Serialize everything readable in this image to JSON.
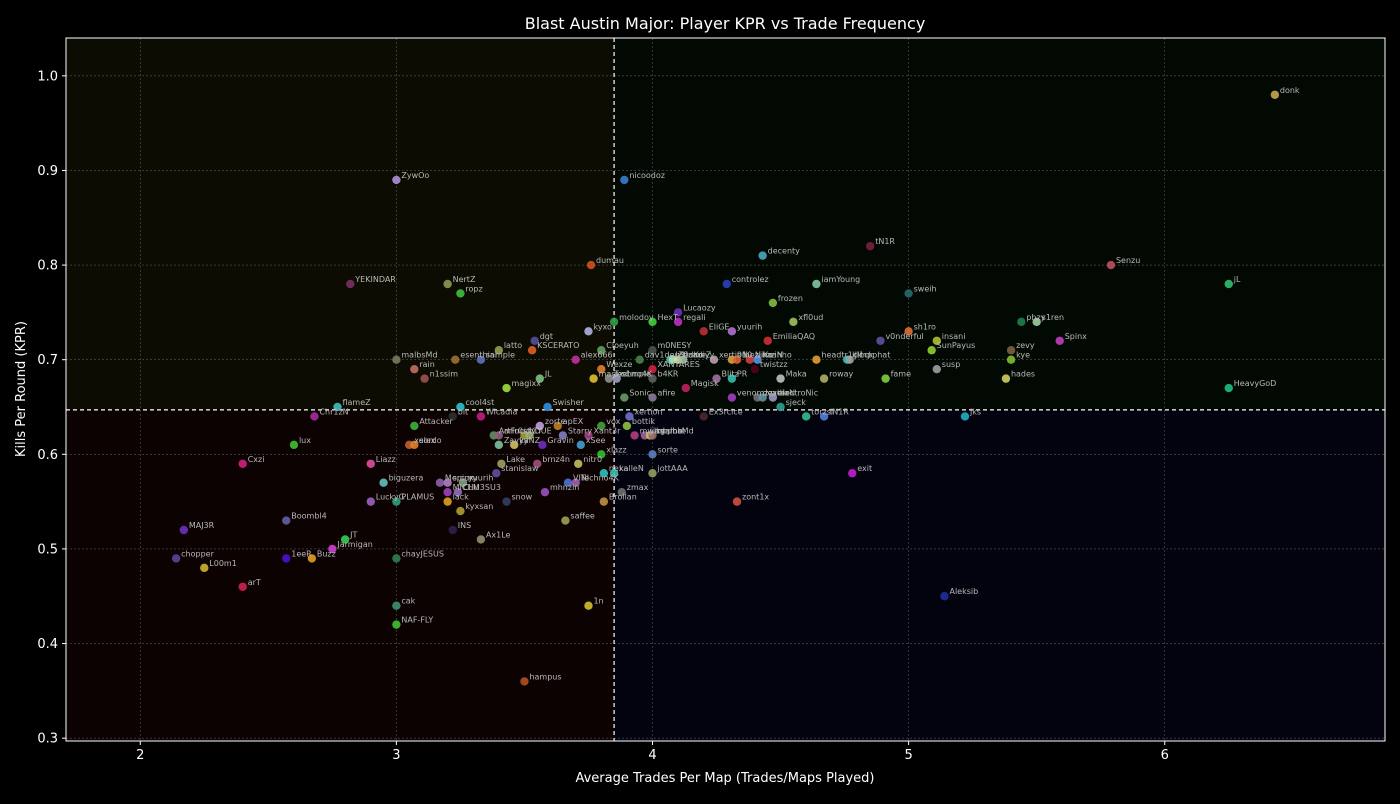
{
  "chart_data": {
    "type": "scatter",
    "title": "Blast Austin Major: Player KPR vs Trade Frequency",
    "xlabel": "Average Trades Per Map (Trades/Maps Played)",
    "ylabel": "Kills Per Round (KPR)",
    "xlim": [
      1.71,
      6.86
    ],
    "ylim": [
      0.297,
      1.04
    ],
    "x_ticks": [
      2,
      3,
      4,
      5,
      6
    ],
    "y_ticks": [
      0.3,
      0.4,
      0.5,
      0.6,
      0.7,
      0.8,
      0.9,
      1.0
    ],
    "x_tick_labels": [
      "2",
      "3",
      "4",
      "5",
      "6"
    ],
    "y_tick_labels": [
      "0.3",
      "0.4",
      "0.5",
      "0.6",
      "0.7",
      "0.8",
      "0.9",
      "1.0"
    ],
    "grid": true,
    "reference_lines": {
      "x": 3.85,
      "y": 0.647
    },
    "quadrant_colors": {
      "top_left": "#0c0c03",
      "top_right": "#020902",
      "bottom_left": "#0c0202",
      "bottom_right": "#03030f"
    },
    "points": [
      {
        "label": "donk",
        "x": 6.43,
        "y": 0.98,
        "color": "#c8a850"
      },
      {
        "label": "ZywOo",
        "x": 3.0,
        "y": 0.89,
        "color": "#b08ed8"
      },
      {
        "label": "nicoodoz",
        "x": 3.89,
        "y": 0.89,
        "color": "#3a7fd0"
      },
      {
        "label": "tN1R",
        "x": 4.85,
        "y": 0.82,
        "color": "#7a2040"
      },
      {
        "label": "decenty",
        "x": 4.43,
        "y": 0.81,
        "color": "#4aa8c0"
      },
      {
        "label": "Senzu",
        "x": 5.79,
        "y": 0.8,
        "color": "#c05060"
      },
      {
        "label": "dumau",
        "x": 3.76,
        "y": 0.8,
        "color": "#d05020"
      },
      {
        "label": "YEKINDAR",
        "x": 2.82,
        "y": 0.78,
        "color": "#7a3060"
      },
      {
        "label": "NertZ",
        "x": 3.2,
        "y": 0.78,
        "color": "#8a9a50"
      },
      {
        "label": "controlez",
        "x": 4.29,
        "y": 0.78,
        "color": "#2a40c0"
      },
      {
        "label": "iamYoung",
        "x": 4.64,
        "y": 0.78,
        "color": "#80c8a0"
      },
      {
        "label": "jL",
        "x": 6.25,
        "y": 0.78,
        "color": "#30c070"
      },
      {
        "label": "ropz",
        "x": 3.25,
        "y": 0.77,
        "color": "#40c040"
      },
      {
        "label": "sweih",
        "x": 5.0,
        "y": 0.77,
        "color": "#2a6a70"
      },
      {
        "label": "frozen",
        "x": 4.47,
        "y": 0.76,
        "color": "#80c040"
      },
      {
        "label": "Lucaozy",
        "x": 4.1,
        "y": 0.75,
        "color": "#7030c0"
      },
      {
        "label": "molodoy",
        "x": 3.85,
        "y": 0.74,
        "color": "#30a040"
      },
      {
        "label": "HexT",
        "x": 4.0,
        "y": 0.74,
        "color": "#40d040"
      },
      {
        "label": "regali",
        "x": 4.1,
        "y": 0.74,
        "color": "#c030c0"
      },
      {
        "label": "xfl0ud",
        "x": 4.55,
        "y": 0.74,
        "color": "#a0c060"
      },
      {
        "label": "phzy",
        "x": 5.44,
        "y": 0.74,
        "color": "#208050"
      },
      {
        "label": "s1ren",
        "x": 5.5,
        "y": 0.74,
        "color": "#a0d0a0"
      },
      {
        "label": "kyxo",
        "x": 3.75,
        "y": 0.73,
        "color": "#b0b0e0"
      },
      {
        "label": "EliGE",
        "x": 4.2,
        "y": 0.73,
        "color": "#c03030"
      },
      {
        "label": "yuurih",
        "x": 4.31,
        "y": 0.73,
        "color": "#b070d0"
      },
      {
        "label": "sh1ro",
        "x": 5.0,
        "y": 0.73,
        "color": "#e07030"
      },
      {
        "label": "dgt",
        "x": 3.54,
        "y": 0.72,
        "color": "#5050a0"
      },
      {
        "label": "EmiliaQAQ",
        "x": 4.45,
        "y": 0.72,
        "color": "#d03030"
      },
      {
        "label": "v0nderful",
        "x": 4.89,
        "y": 0.72,
        "color": "#6050a0"
      },
      {
        "label": "insani",
        "x": 5.11,
        "y": 0.72,
        "color": "#b0c030"
      },
      {
        "label": "Spinx",
        "x": 5.59,
        "y": 0.72,
        "color": "#c040c0"
      },
      {
        "label": "latto",
        "x": 3.4,
        "y": 0.71,
        "color": "#90a050"
      },
      {
        "label": "KSCERATO",
        "x": 3.53,
        "y": 0.71,
        "color": "#e06020"
      },
      {
        "label": "Cloeyuh",
        "x": 3.8,
        "y": 0.71,
        "color": "#60a060"
      },
      {
        "label": "m0NESY",
        "x": 4.0,
        "y": 0.71,
        "color": "#505050"
      },
      {
        "label": "SunPayus",
        "x": 5.09,
        "y": 0.71,
        "color": "#90d030"
      },
      {
        "label": "zevy",
        "x": 5.4,
        "y": 0.71,
        "color": "#806040"
      },
      {
        "label": "malbsMd",
        "x": 3.0,
        "y": 0.7,
        "color": "#7a7a60"
      },
      {
        "label": "esenthial",
        "x": 3.23,
        "y": 0.7,
        "color": "#a07030"
      },
      {
        "label": "sample",
        "x": 3.33,
        "y": 0.7,
        "color": "#6070c0"
      },
      {
        "label": "alex666",
        "x": 3.7,
        "y": 0.7,
        "color": "#c030a0"
      },
      {
        "label": "dav1deuS",
        "x": 3.95,
        "y": 0.7,
        "color": "#508050"
      },
      {
        "label": "b1t",
        "x": 4.07,
        "y": 0.7,
        "color": "#40c0b0"
      },
      {
        "label": "ZedKo",
        "x": 4.08,
        "y": 0.7,
        "color": "#b0e0b0"
      },
      {
        "label": "flameZ",
        "x": 4.1,
        "y": 0.7,
        "color": "#d0e0a0"
      },
      {
        "label": "cadiyy",
        "x": 4.12,
        "y": 0.7,
        "color": "#a0c0a0"
      },
      {
        "label": "xertioN",
        "x": 4.24,
        "y": 0.7,
        "color": "#c0a0b0"
      },
      {
        "label": "910",
        "x": 4.31,
        "y": 0.7,
        "color": "#e0a040"
      },
      {
        "label": "mezii",
        "x": 4.33,
        "y": 0.7,
        "color": "#e06030"
      },
      {
        "label": "NiKo",
        "x": 4.38,
        "y": 0.7,
        "color": "#d04040"
      },
      {
        "label": "mzinho",
        "x": 4.41,
        "y": 0.7,
        "color": "#a05050"
      },
      {
        "label": "kaaN",
        "x": 4.41,
        "y": 0.7,
        "color": "#4090e0"
      },
      {
        "label": "headtr1ck",
        "x": 4.64,
        "y": 0.7,
        "color": "#e0a030"
      },
      {
        "label": "kl1ck",
        "x": 4.76,
        "y": 0.7,
        "color": "#30c0c0"
      },
      {
        "label": "Jimpphat",
        "x": 4.77,
        "y": 0.7,
        "color": "#a0a0a0"
      },
      {
        "label": "kye",
        "x": 5.4,
        "y": 0.7,
        "color": "#80c030"
      },
      {
        "label": "rain",
        "x": 3.07,
        "y": 0.69,
        "color": "#c07060"
      },
      {
        "label": "Wexze",
        "x": 3.8,
        "y": 0.69,
        "color": "#e08030"
      },
      {
        "label": "XANTARES",
        "x": 4.0,
        "y": 0.69,
        "color": "#d02040"
      },
      {
        "label": "twistzz",
        "x": 4.4,
        "y": 0.69,
        "color": "#500020"
      },
      {
        "label": "susp",
        "x": 5.11,
        "y": 0.69,
        "color": "#a0a0a0"
      },
      {
        "label": "n1ssim",
        "x": 3.11,
        "y": 0.68,
        "color": "#a05050"
      },
      {
        "label": "JL",
        "x": 3.56,
        "y": 0.68,
        "color": "#80c080"
      },
      {
        "label": "magixx",
        "x": 3.77,
        "y": 0.68,
        "color": "#e0c030"
      },
      {
        "label": "Techno4K",
        "x": 3.83,
        "y": 0.68,
        "color": "#909090"
      },
      {
        "label": "s1mple",
        "x": 3.86,
        "y": 0.68,
        "color": "#a0a0c0"
      },
      {
        "label": "b4KR",
        "x": 4.0,
        "y": 0.68,
        "color": "#606060"
      },
      {
        "label": "Blitz",
        "x": 4.25,
        "y": 0.68,
        "color": "#a070a0"
      },
      {
        "label": "PR",
        "x": 4.31,
        "y": 0.68,
        "color": "#30c0b0"
      },
      {
        "label": "Maka",
        "x": 4.5,
        "y": 0.68,
        "color": "#c0c0c0"
      },
      {
        "label": "roway",
        "x": 4.67,
        "y": 0.68,
        "color": "#b0b060"
      },
      {
        "label": "fame",
        "x": 4.91,
        "y": 0.68,
        "color": "#80d040"
      },
      {
        "label": "hades",
        "x": 5.38,
        "y": 0.68,
        "color": "#d0d060"
      },
      {
        "label": "magixx",
        "x": 3.43,
        "y": 0.67,
        "color": "#a0e040"
      },
      {
        "label": "Magisk",
        "x": 4.13,
        "y": 0.67,
        "color": "#c02060"
      },
      {
        "label": "HeavyGoD",
        "x": 6.25,
        "y": 0.67,
        "color": "#20c080"
      },
      {
        "label": "Sonic",
        "x": 3.89,
        "y": 0.66,
        "color": "#6a9a6a"
      },
      {
        "label": "afire",
        "x": 4.0,
        "y": 0.66,
        "color": "#8a7a9a"
      },
      {
        "label": "venomzz",
        "x": 4.31,
        "y": 0.66,
        "color": "#a040c0"
      },
      {
        "label": "dexter",
        "x": 4.41,
        "y": 0.66,
        "color": "#707070"
      },
      {
        "label": "cadiaN",
        "x": 4.43,
        "y": 0.66,
        "color": "#6090a0"
      },
      {
        "label": "electroNic",
        "x": 4.47,
        "y": 0.66,
        "color": "#9a9ac0"
      },
      {
        "label": "flameZ",
        "x": 2.77,
        "y": 0.65,
        "color": "#40c0c0"
      },
      {
        "label": "cool4st",
        "x": 3.25,
        "y": 0.65,
        "color": "#30c0d0"
      },
      {
        "label": "Swisher",
        "x": 3.59,
        "y": 0.65,
        "color": "#3090e0"
      },
      {
        "label": "sjeck",
        "x": 4.5,
        "y": 0.65,
        "color": "#30a090"
      },
      {
        "label": "Chr1zN",
        "x": 2.68,
        "y": 0.64,
        "color": "#a030a0"
      },
      {
        "label": "bit",
        "x": 3.22,
        "y": 0.64,
        "color": "#303030"
      },
      {
        "label": "Wicadia",
        "x": 3.33,
        "y": 0.64,
        "color": "#c02080"
      },
      {
        "label": "Ex3rcice",
        "x": 4.2,
        "y": 0.64,
        "color": "#4a2a2a"
      },
      {
        "label": "torzsi",
        "x": 4.6,
        "y": 0.64,
        "color": "#30c090"
      },
      {
        "label": "tN1R",
        "x": 4.67,
        "y": 0.64,
        "color": "#5080e0"
      },
      {
        "label": "jks",
        "x": 5.22,
        "y": 0.64,
        "color": "#20b0c0"
      },
      {
        "label": "xertion",
        "x": 3.91,
        "y": 0.64,
        "color": "#7070d0"
      },
      {
        "label": "Attacker",
        "x": 3.07,
        "y": 0.63,
        "color": "#40b040"
      },
      {
        "label": "zorte",
        "x": 3.56,
        "y": 0.63,
        "color": "#c0a0e0"
      },
      {
        "label": "apEX",
        "x": 3.63,
        "y": 0.63,
        "color": "#c08020"
      },
      {
        "label": "vox",
        "x": 3.8,
        "y": 0.63,
        "color": "#40a040"
      },
      {
        "label": "bottik",
        "x": 3.9,
        "y": 0.63,
        "color": "#90c040"
      },
      {
        "label": "ArtFr0st",
        "x": 3.38,
        "y": 0.62,
        "color": "#609060"
      },
      {
        "label": "arlucidy",
        "x": 3.4,
        "y": 0.62,
        "color": "#906080"
      },
      {
        "label": "ICY",
        "x": 3.5,
        "y": 0.62,
        "color": "#a0a040"
      },
      {
        "label": "DUE",
        "x": 3.52,
        "y": 0.62,
        "color": "#a0b070"
      },
      {
        "label": "Starry",
        "x": 3.65,
        "y": 0.62,
        "color": "#8080c0"
      },
      {
        "label": "Xant3r",
        "x": 3.75,
        "y": 0.62,
        "color": "#a04080"
      },
      {
        "label": "mwlky",
        "x": 3.93,
        "y": 0.62,
        "color": "#b04080"
      },
      {
        "label": "jimpphat",
        "x": 3.97,
        "y": 0.62,
        "color": "#a060a0"
      },
      {
        "label": "adamb",
        "x": 3.99,
        "y": 0.62,
        "color": "#c0c060"
      },
      {
        "label": "malbsMd",
        "x": 4.0,
        "y": 0.62,
        "color": "#9a6a6a"
      },
      {
        "label": "xelex",
        "x": 3.05,
        "y": 0.61,
        "color": "#c06030"
      },
      {
        "label": "sordo",
        "x": 3.07,
        "y": 0.61,
        "color": "#e08030"
      },
      {
        "label": "lux",
        "x": 2.6,
        "y": 0.61,
        "color": "#40c030"
      },
      {
        "label": "Zayyy",
        "x": 3.4,
        "y": 0.61,
        "color": "#80c0a0"
      },
      {
        "label": "kaNZ",
        "x": 3.46,
        "y": 0.61,
        "color": "#d0c060"
      },
      {
        "label": "Gravin",
        "x": 3.57,
        "y": 0.61,
        "color": "#7030c0"
      },
      {
        "label": "xSee",
        "x": 3.72,
        "y": 0.61,
        "color": "#40a0d0"
      },
      {
        "label": "xlazz",
        "x": 3.8,
        "y": 0.6,
        "color": "#30c030"
      },
      {
        "label": "sorte",
        "x": 4.0,
        "y": 0.6,
        "color": "#6080c0"
      },
      {
        "label": "Cxzi",
        "x": 2.4,
        "y": 0.59,
        "color": "#d02080"
      },
      {
        "label": "Liazz",
        "x": 2.9,
        "y": 0.59,
        "color": "#e050a0"
      },
      {
        "label": "Lake",
        "x": 3.41,
        "y": 0.59,
        "color": "#a0a060"
      },
      {
        "label": "brnz4n",
        "x": 3.55,
        "y": 0.59,
        "color": "#a05080"
      },
      {
        "label": "nitr0",
        "x": 3.71,
        "y": 0.59,
        "color": "#c0c060"
      },
      {
        "label": "stanislaw",
        "x": 3.39,
        "y": 0.58,
        "color": "#6050a0"
      },
      {
        "label": "nexa",
        "x": 3.81,
        "y": 0.58,
        "color": "#30c0c0"
      },
      {
        "label": "kalleN",
        "x": 3.85,
        "y": 0.58,
        "color": "#30c0b0"
      },
      {
        "label": "jottAAA",
        "x": 4.0,
        "y": 0.58,
        "color": "#90a060"
      },
      {
        "label": "exit",
        "x": 4.78,
        "y": 0.58,
        "color": "#c020d0"
      },
      {
        "label": "biguzera",
        "x": 2.95,
        "y": 0.57,
        "color": "#60c0c0"
      },
      {
        "label": "Mercury",
        "x": 3.17,
        "y": 0.57,
        "color": "#9060b0"
      },
      {
        "label": "spinx",
        "x": 3.2,
        "y": 0.57,
        "color": "#b080c0"
      },
      {
        "label": "yuurih",
        "x": 3.26,
        "y": 0.57,
        "color": "#80a080"
      },
      {
        "label": "VINI",
        "x": 3.67,
        "y": 0.57,
        "color": "#5070d0"
      },
      {
        "label": "Techno4K",
        "x": 3.7,
        "y": 0.57,
        "color": "#a060b0"
      },
      {
        "label": "MICHU",
        "x": 3.2,
        "y": 0.56,
        "color": "#a040c0"
      },
      {
        "label": "CLM3SU3",
        "x": 3.24,
        "y": 0.56,
        "color": "#9070c0"
      },
      {
        "label": "mhnzin",
        "x": 3.58,
        "y": 0.56,
        "color": "#a050c0"
      },
      {
        "label": "zmax",
        "x": 3.88,
        "y": 0.56,
        "color": "#707070"
      },
      {
        "label": "LuckyG",
        "x": 2.9,
        "y": 0.55,
        "color": "#a060c0"
      },
      {
        "label": "PLAMUS",
        "x": 3.0,
        "y": 0.55,
        "color": "#30a080"
      },
      {
        "label": "lack",
        "x": 3.2,
        "y": 0.55,
        "color": "#e0a020"
      },
      {
        "label": "snow",
        "x": 3.43,
        "y": 0.55,
        "color": "#304060"
      },
      {
        "label": "Brollan",
        "x": 3.81,
        "y": 0.55,
        "color": "#c09040"
      },
      {
        "label": "zont1x",
        "x": 4.33,
        "y": 0.55,
        "color": "#d05040"
      },
      {
        "label": "kyxsan",
        "x": 3.25,
        "y": 0.54,
        "color": "#b0a030"
      },
      {
        "label": "Boombl4",
        "x": 2.57,
        "y": 0.53,
        "color": "#6060a0"
      },
      {
        "label": "saffee",
        "x": 3.66,
        "y": 0.53,
        "color": "#a0a050"
      },
      {
        "label": "MAJ3R",
        "x": 2.17,
        "y": 0.52,
        "color": "#7030c0"
      },
      {
        "label": "INS",
        "x": 3.22,
        "y": 0.52,
        "color": "#302050"
      },
      {
        "label": "JT",
        "x": 2.8,
        "y": 0.51,
        "color": "#30d050"
      },
      {
        "label": "Ax1Le",
        "x": 3.33,
        "y": 0.51,
        "color": "#909070"
      },
      {
        "label": "Jarmigan",
        "x": 2.75,
        "y": 0.5,
        "color": "#d040d0"
      },
      {
        "label": "chopper",
        "x": 2.14,
        "y": 0.49,
        "color": "#6040a0"
      },
      {
        "label": "1eeR",
        "x": 2.57,
        "y": 0.49,
        "color": "#5010d0"
      },
      {
        "label": "Buzz",
        "x": 2.67,
        "y": 0.49,
        "color": "#e0a020"
      },
      {
        "label": "chayJESUS",
        "x": 3.0,
        "y": 0.49,
        "color": "#308050"
      },
      {
        "label": "L00m1",
        "x": 2.25,
        "y": 0.48,
        "color": "#d0b030"
      },
      {
        "label": "arT",
        "x": 2.4,
        "y": 0.46,
        "color": "#d02050"
      },
      {
        "label": "Aleksib",
        "x": 5.14,
        "y": 0.45,
        "color": "#2030a0"
      },
      {
        "label": "cak",
        "x": 3.0,
        "y": 0.44,
        "color": "#409070"
      },
      {
        "label": "1n",
        "x": 3.75,
        "y": 0.44,
        "color": "#d0c030"
      },
      {
        "label": "NAF-FLY",
        "x": 3.0,
        "y": 0.42,
        "color": "#40c030"
      },
      {
        "label": "hampus",
        "x": 3.5,
        "y": 0.36,
        "color": "#b05020"
      }
    ]
  }
}
